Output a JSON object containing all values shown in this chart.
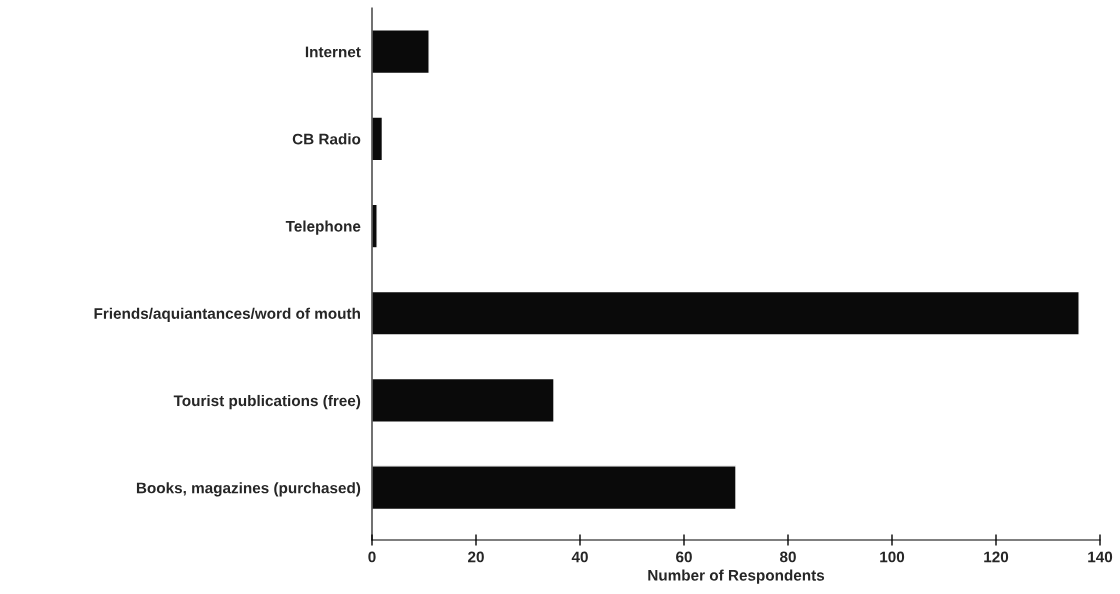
{
  "chart_data": {
    "type": "bar",
    "orientation": "horizontal",
    "xlabel": "Number of Respondents",
    "categories": [
      "Internet",
      "CB Radio",
      "Telephone",
      "Friends/aquiantances/word of mouth",
      "Tourist publications (free)",
      "Books, magazines (purchased)"
    ],
    "values": [
      11,
      2,
      1,
      136,
      35,
      70
    ],
    "color": "#0a0a0a",
    "xlim": [
      0,
      140
    ],
    "xticks": [
      0,
      20,
      40,
      60,
      80,
      100,
      120,
      140
    ],
    "grid": false,
    "legend": false
  }
}
